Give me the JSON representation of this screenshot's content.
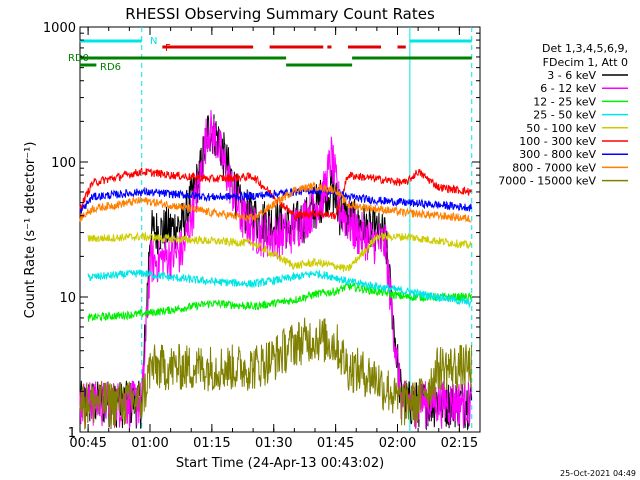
{
  "chart_data": {
    "type": "line",
    "title": "RHESSI Observing Summary Count Rates",
    "xlabel": "Start Time (24-Apr-13 00:43:02)",
    "ylabel": "Count Rate (s⁻¹ detector⁻¹)",
    "ylog": true,
    "ylim": [
      1,
      1000
    ],
    "xlim": [
      "00:43:02",
      "02:20:00"
    ],
    "x_ticks": [
      "00:45",
      "01:00",
      "01:15",
      "01:30",
      "01:45",
      "02:00",
      "02:15"
    ],
    "y_ticks": [
      "1",
      "10",
      "100",
      "1000"
    ],
    "legend_position": "right",
    "legend_header": [
      "Det 1,3,4,5,6,9,",
      "FDecim 1, Att 0"
    ],
    "timestamp": "25-Oct-2021 04:49",
    "flags": [
      {
        "label": "N",
        "color": "#00e5e5",
        "segments": [
          [
            "00:43",
            "00:58"
          ],
          [
            "02:03",
            "02:18"
          ]
        ]
      },
      {
        "label": "F",
        "color": "#e00000",
        "segments": [
          [
            "01:03",
            "01:25"
          ],
          [
            "01:29",
            "01:42"
          ],
          [
            "01:43",
            "01:44"
          ],
          [
            "01:48",
            "01:56"
          ],
          [
            "02:00",
            "02:02"
          ]
        ]
      },
      {
        "label": "RD0",
        "color": "#008000",
        "segments": [
          [
            "00:43",
            "00:45"
          ],
          [
            "00:45",
            "01:33"
          ],
          [
            "01:49",
            "02:18"
          ]
        ]
      },
      {
        "label": "RD6",
        "color": "#008000",
        "segments": [
          [
            "00:43",
            "00:47"
          ],
          [
            "01:33",
            "01:49"
          ]
        ]
      }
    ],
    "markers_dashed": [
      "00:58",
      "02:18"
    ],
    "markers_solid": [
      "02:03"
    ],
    "series": [
      {
        "name": "3 - 6 keV",
        "color": "#000000",
        "x": [
          "00:43",
          "00:47",
          "00:58",
          "01:00",
          "01:05",
          "01:08",
          "01:12",
          "01:14",
          "01:16",
          "01:18",
          "01:22",
          "01:26",
          "01:30",
          "01:34",
          "01:38",
          "01:42",
          "01:44",
          "01:46",
          "01:50",
          "01:54",
          "01:57",
          "02:01",
          "02:03",
          "02:05",
          "02:10",
          "02:18"
        ],
        "values": [
          1.5,
          1.5,
          1.5,
          30,
          32,
          35,
          80,
          170,
          160,
          110,
          45,
          38,
          35,
          33,
          38,
          55,
          65,
          42,
          35,
          30,
          28,
          1.6,
          1.5,
          1.5,
          1.5,
          1.5
        ]
      },
      {
        "name": "6 - 12 keV",
        "color": "#ff00ff",
        "x": [
          "00:43",
          "00:47",
          "00:58",
          "01:00",
          "01:05",
          "01:08",
          "01:12",
          "01:14",
          "01:16",
          "01:18",
          "01:22",
          "01:26",
          "01:30",
          "01:34",
          "01:38",
          "01:42",
          "01:44",
          "01:46",
          "01:50",
          "01:54",
          "01:57",
          "02:01",
          "02:03",
          "02:05",
          "02:10",
          "02:18"
        ],
        "values": [
          1.5,
          1.5,
          1.5,
          18,
          20,
          22,
          70,
          180,
          150,
          95,
          40,
          30,
          28,
          30,
          40,
          55,
          110,
          45,
          30,
          26,
          25,
          1.5,
          1.5,
          1.5,
          1.5,
          1.5
        ]
      },
      {
        "name": "12 - 25 keV",
        "color": "#00ee00",
        "x": [
          "00:45",
          "00:58",
          "01:05",
          "01:15",
          "01:25",
          "01:35",
          "01:40",
          "01:45",
          "01:48",
          "01:55",
          "02:02",
          "02:10",
          "02:18"
        ],
        "values": [
          7,
          7.5,
          8,
          9,
          8.5,
          9.5,
          10.5,
          11,
          12,
          11,
          10,
          10,
          10
        ]
      },
      {
        "name": "25 - 50 keV",
        "color": "#00e5e5",
        "x": [
          "00:45",
          "00:58",
          "01:05",
          "01:15",
          "01:25",
          "01:35",
          "01:40",
          "01:45",
          "01:48",
          "01:55",
          "02:02",
          "02:10",
          "02:18"
        ],
        "values": [
          14,
          15,
          14,
          13,
          12.5,
          14,
          15,
          14,
          13,
          12,
          11,
          10,
          9
        ]
      },
      {
        "name": "50 - 100 keV",
        "color": "#cccc00",
        "x": [
          "00:45",
          "00:58",
          "01:05",
          "01:15",
          "01:25",
          "01:35",
          "01:40",
          "01:45",
          "01:48",
          "01:55",
          "02:02",
          "02:10",
          "02:18"
        ],
        "values": [
          27,
          28,
          27,
          26,
          25,
          17,
          18,
          17,
          16,
          28,
          28,
          26,
          24
        ]
      },
      {
        "name": "100 - 300 keV",
        "color": "#ff0000",
        "x": [
          "00:43",
          "00:46",
          "00:58",
          "01:05",
          "01:15",
          "01:25",
          "01:35",
          "01:40",
          "01:45",
          "01:48",
          "01:55",
          "02:02",
          "02:05",
          "02:10",
          "02:18"
        ],
        "values": [
          45,
          70,
          85,
          80,
          75,
          78,
          40,
          42,
          40,
          80,
          75,
          70,
          85,
          65,
          60
        ]
      },
      {
        "name": "300 - 800 keV",
        "color": "#0000ff",
        "x": [
          "00:43",
          "00:46",
          "00:58",
          "01:05",
          "01:15",
          "01:25",
          "01:35",
          "01:40",
          "01:45",
          "01:48",
          "01:55",
          "02:02",
          "02:10",
          "02:18"
        ],
        "values": [
          42,
          55,
          60,
          58,
          55,
          56,
          60,
          62,
          60,
          55,
          52,
          50,
          48,
          46
        ]
      },
      {
        "name": "800 - 7000 keV",
        "color": "#ff8000",
        "x": [
          "00:43",
          "00:46",
          "00:58",
          "01:05",
          "01:15",
          "01:25",
          "01:35",
          "01:40",
          "01:45",
          "01:48",
          "01:55",
          "02:02",
          "02:10",
          "02:18"
        ],
        "values": [
          38,
          45,
          52,
          48,
          42,
          38,
          62,
          66,
          62,
          48,
          45,
          42,
          40,
          38
        ]
      },
      {
        "name": "7000 - 15000 keV",
        "color": "#808000",
        "x": [
          "00:43",
          "00:58",
          "01:00",
          "01:05",
          "01:15",
          "01:25",
          "01:30",
          "01:35",
          "01:40",
          "01:45",
          "01:48",
          "01:55",
          "02:00",
          "02:05",
          "02:10",
          "02:18"
        ],
        "values": [
          1.5,
          1.5,
          3,
          3,
          3,
          3,
          3.5,
          4.5,
          5,
          4.5,
          3,
          2.5,
          1.5,
          1.5,
          3,
          3
        ]
      }
    ]
  }
}
